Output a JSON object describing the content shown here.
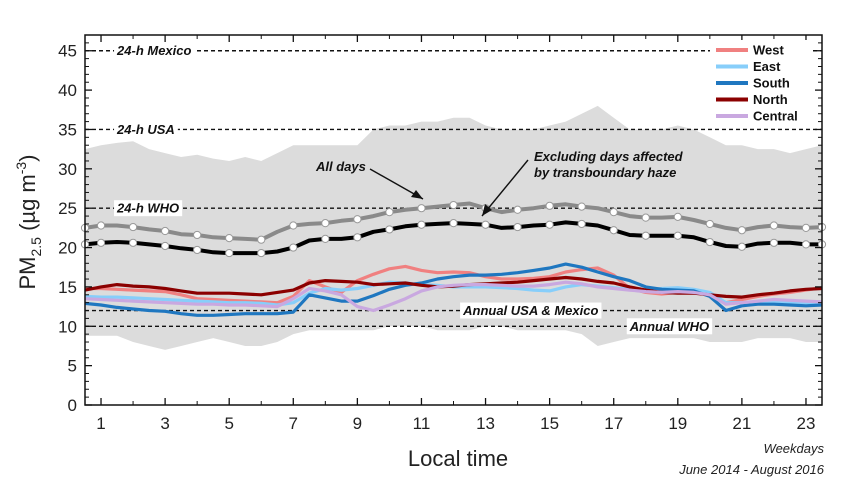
{
  "chart_data": {
    "type": "line",
    "x": [
      0.5,
      1,
      1.5,
      2,
      2.5,
      3,
      3.5,
      4,
      4.5,
      5,
      5.5,
      6,
      6.5,
      7,
      7.5,
      8,
      8.5,
      9,
      9.5,
      10,
      10.5,
      11,
      11.5,
      12,
      12.5,
      13,
      13.5,
      14,
      14.5,
      15,
      15.5,
      16,
      16.5,
      17,
      17.5,
      18,
      18.5,
      19,
      19.5,
      20,
      20.5,
      21,
      21.5,
      22,
      22.5,
      23,
      23.5
    ],
    "xticks": [
      1,
      3,
      5,
      7,
      9,
      11,
      13,
      15,
      17,
      19,
      21,
      23
    ],
    "xlim": [
      0.5,
      23.5
    ],
    "xlabel": "Local time",
    "ylabel": {
      "base": "PM",
      "sub": "2.5",
      "units": " (µg m",
      "sup": "-3",
      "close": ")"
    },
    "ylim": [
      0,
      47
    ],
    "yticks": [
      0,
      5,
      10,
      15,
      20,
      25,
      30,
      35,
      40,
      45
    ],
    "band": {
      "upper": [
        32.5,
        33,
        33.3,
        33.5,
        32.5,
        32,
        31.5,
        31.8,
        31.3,
        31,
        31.5,
        31,
        32,
        33,
        33,
        33,
        33,
        33,
        35,
        35.5,
        35.5,
        36,
        36,
        36.5,
        36.5,
        35.5,
        35,
        35,
        35,
        35.5,
        36,
        37,
        38,
        36.5,
        35,
        35,
        35,
        35.5,
        35,
        34,
        33,
        33,
        32.5,
        32.5,
        32,
        32.5,
        33
      ],
      "lower": [
        8.8,
        8.8,
        8.8,
        8,
        7.5,
        7,
        7.5,
        8,
        8.5,
        8,
        7.5,
        7.5,
        8,
        9,
        9.5,
        9.5,
        9.5,
        9.5,
        9.5,
        10,
        10,
        10,
        9.5,
        9.5,
        9.5,
        10,
        10,
        9.5,
        9.5,
        9.5,
        9.5,
        9,
        7.5,
        8,
        8.5,
        8.5,
        8.5,
        8.5,
        8.5,
        8,
        8,
        8,
        8.5,
        8.5,
        8.5,
        8,
        8
      ]
    },
    "reference_lines": [
      {
        "y": 45,
        "label": "24-h Mexico",
        "label_x": 1.5
      },
      {
        "y": 35,
        "label": "24-h USA",
        "label_x": 1.5
      },
      {
        "y": 25,
        "label": "24-h WHO",
        "label_x": 1.5
      },
      {
        "y": 12,
        "label": "Annual USA & Mexico",
        "label_x": 12.3
      },
      {
        "y": 10,
        "label": "Annual WHO",
        "label_x": 17.5
      }
    ],
    "aggregate_series": [
      {
        "color": "#8a8a8a",
        "values": [
          22.5,
          22.8,
          22.8,
          22.6,
          22.3,
          22.1,
          21.7,
          21.6,
          21.3,
          21.2,
          21.1,
          21.0,
          22.0,
          22.8,
          23.0,
          23.1,
          23.4,
          23.6,
          24.0,
          24.5,
          24.8,
          25.0,
          25.2,
          25.4,
          25.6,
          25.0,
          24.5,
          24.8,
          25.0,
          25.3,
          25.5,
          25.2,
          25.0,
          24.5,
          24.0,
          23.8,
          23.8,
          23.9,
          23.5,
          23.0,
          22.5,
          22.2,
          22.6,
          22.8,
          22.6,
          22.5,
          22.6
        ]
      },
      {
        "color": "#000000",
        "values": [
          20.4,
          20.6,
          20.7,
          20.6,
          20.4,
          20.2,
          19.9,
          19.7,
          19.4,
          19.3,
          19.3,
          19.3,
          19.5,
          20.0,
          20.9,
          21.1,
          21.1,
          21.3,
          22.0,
          22.3,
          22.7,
          22.9,
          23.0,
          23.1,
          23.0,
          22.9,
          22.5,
          22.6,
          22.8,
          22.9,
          23.2,
          23.0,
          22.8,
          22.2,
          21.6,
          21.5,
          21.5,
          21.5,
          21.3,
          20.7,
          20.2,
          20.1,
          20.5,
          20.6,
          20.6,
          20.4,
          20.4
        ]
      }
    ],
    "marker_x": [
      0.5,
      1,
      2,
      3,
      4,
      5,
      6,
      7,
      8,
      9,
      10,
      11,
      12,
      13,
      14,
      15,
      16,
      17,
      18,
      19,
      20,
      21,
      22,
      23,
      23.5
    ],
    "series": [
      {
        "name": "West",
        "color": "#f08080",
        "values": [
          14.8,
          14.8,
          14.7,
          14.6,
          14.5,
          14.4,
          14.0,
          13.5,
          13.4,
          13.3,
          13.2,
          13.1,
          13.0,
          13.8,
          15.8,
          15.0,
          14.3,
          15.8,
          16.6,
          17.3,
          17.6,
          17.1,
          16.8,
          16.9,
          16.8,
          16.3,
          16.0,
          16.0,
          16.1,
          16.3,
          16.9,
          17.2,
          17.4,
          16.5,
          14.8,
          14.3,
          14.1,
          14.3,
          14.3,
          14.0,
          13.0,
          13.4,
          13.8,
          14.1,
          14.3,
          14.6,
          14.9
        ]
      },
      {
        "name": "East",
        "color": "#87cefa",
        "values": [
          13.8,
          13.7,
          13.7,
          13.6,
          13.5,
          13.4,
          13.3,
          13.2,
          13.1,
          13.0,
          13.0,
          12.9,
          12.7,
          13.0,
          14.2,
          14.8,
          14.6,
          14.8,
          15.2,
          15.6,
          15.5,
          15.3,
          15.2,
          15.0,
          15.0,
          15.0,
          14.9,
          14.8,
          14.6,
          14.5,
          15.0,
          15.3,
          15.1,
          14.9,
          14.7,
          14.6,
          14.8,
          14.9,
          14.7,
          14.3,
          13.0,
          13.0,
          13.1,
          13.2,
          13.1,
          13.0,
          12.9
        ]
      },
      {
        "name": "South",
        "color": "#1f77c0",
        "values": [
          12.9,
          12.7,
          12.4,
          12.2,
          12.0,
          11.9,
          11.6,
          11.4,
          11.4,
          11.5,
          11.6,
          11.6,
          11.6,
          11.8,
          14.0,
          13.6,
          13.2,
          13.2,
          13.9,
          14.7,
          15.2,
          15.5,
          16.0,
          16.3,
          16.5,
          16.5,
          16.6,
          16.8,
          17.1,
          17.4,
          17.9,
          17.5,
          16.9,
          16.3,
          15.8,
          15.0,
          14.7,
          14.6,
          14.5,
          13.8,
          12.0,
          12.6,
          12.8,
          12.8,
          12.7,
          12.6,
          12.7
        ]
      },
      {
        "name": "North",
        "color": "#8b0000",
        "values": [
          14.6,
          15.0,
          15.3,
          15.1,
          15.0,
          14.8,
          14.5,
          14.2,
          14.2,
          14.2,
          14.1,
          14.0,
          14.3,
          14.6,
          15.5,
          15.8,
          15.7,
          15.6,
          15.3,
          15.4,
          15.5,
          15.2,
          15.0,
          15.1,
          15.3,
          15.4,
          15.5,
          15.6,
          15.8,
          16.0,
          16.2,
          16.0,
          15.7,
          15.5,
          15.0,
          14.6,
          14.3,
          14.2,
          14.2,
          14.0,
          13.8,
          13.7,
          14.0,
          14.2,
          14.5,
          14.7,
          14.8
        ]
      },
      {
        "name": "Central",
        "color": "#c9a8e0",
        "values": [
          13.5,
          13.4,
          13.3,
          13.2,
          13.1,
          13.0,
          12.9,
          12.8,
          12.8,
          12.7,
          12.7,
          12.6,
          12.5,
          13.5,
          14.8,
          14.5,
          14.0,
          12.5,
          12.0,
          12.7,
          13.5,
          14.5,
          15.0,
          15.2,
          15.3,
          15.3,
          15.2,
          15.1,
          15.1,
          15.3,
          15.6,
          15.4,
          15.0,
          14.8,
          14.6,
          14.4,
          14.3,
          14.4,
          14.3,
          14.0,
          12.8,
          13.0,
          13.2,
          13.4,
          13.3,
          13.2,
          13.1
        ]
      }
    ],
    "annotations": [
      {
        "lines": [
          "All days"
        ]
      },
      {
        "lines": [
          "Excluding days affected",
          "by transboundary haze"
        ]
      }
    ],
    "footnote": [
      "Weekdays",
      "June 2014 - August 2016"
    ],
    "legend_position": "top-right",
    "grid": false
  }
}
